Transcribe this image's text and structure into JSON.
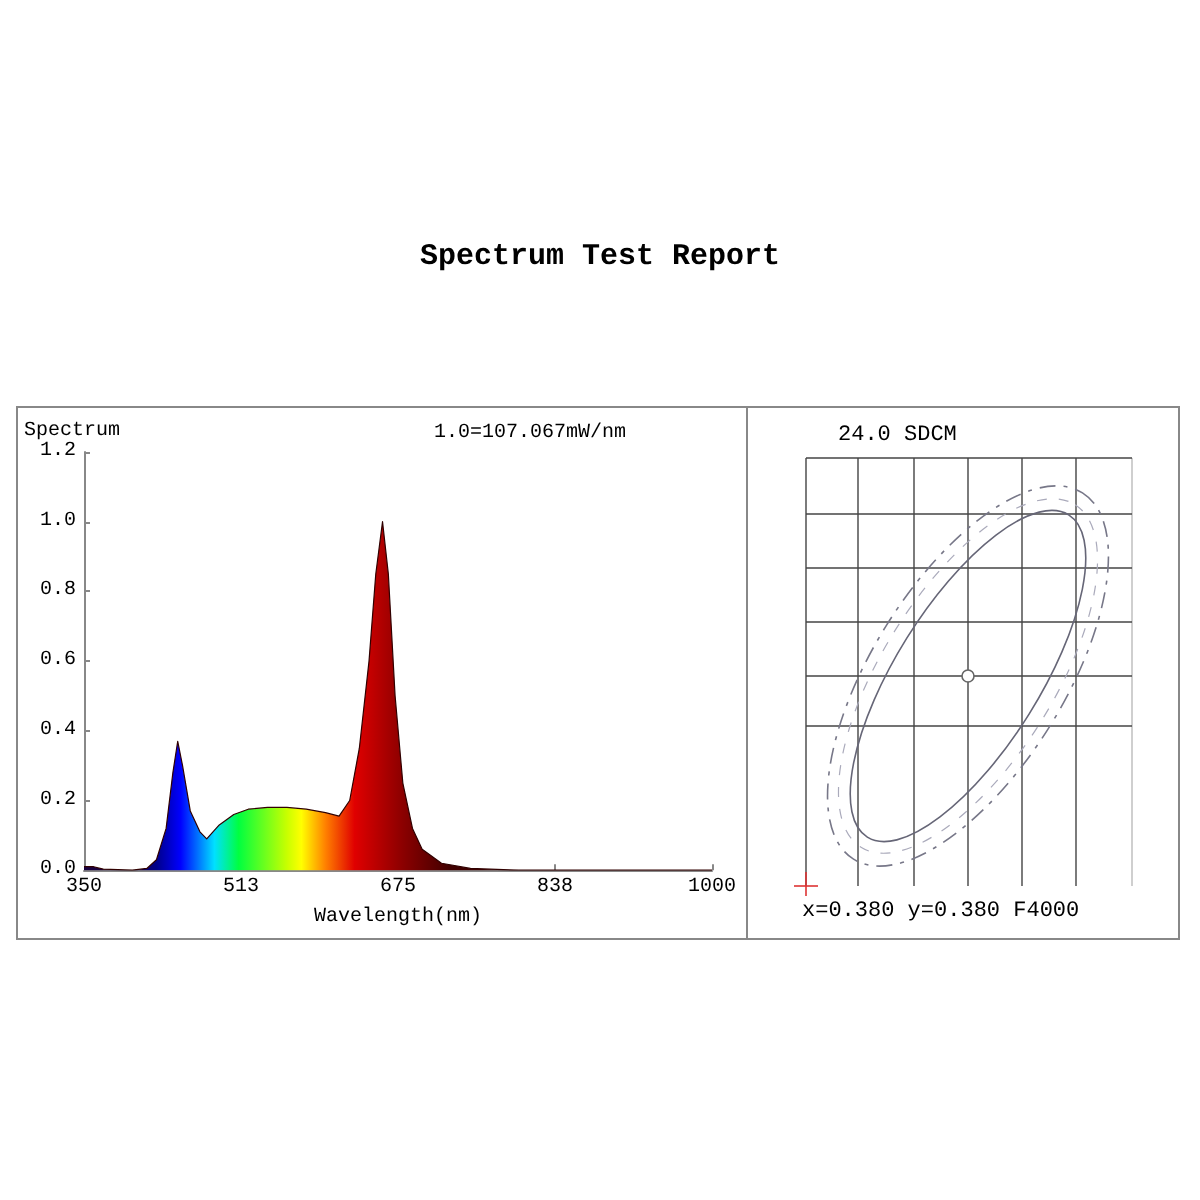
{
  "chart_data": [
    {
      "type": "area",
      "title": "Spectrum Test Report",
      "xlabel": "Wavelength(nm)",
      "ylabel": "Spectrum",
      "annotations": [
        "1.0=107.067mW/nm"
      ],
      "x": [
        350,
        360,
        370,
        400,
        415,
        425,
        435,
        442,
        447,
        452,
        460,
        470,
        477,
        490,
        505,
        520,
        540,
        560,
        580,
        600,
        614,
        625,
        635,
        645,
        652,
        659,
        665,
        672,
        680,
        690,
        700,
        720,
        750,
        800,
        900,
        1000
      ],
      "values": [
        0.01,
        0.01,
        0.003,
        0,
        0.005,
        0.03,
        0.12,
        0.28,
        0.37,
        0.3,
        0.17,
        0.11,
        0.09,
        0.13,
        0.16,
        0.175,
        0.18,
        0.18,
        0.175,
        0.165,
        0.155,
        0.2,
        0.35,
        0.6,
        0.85,
        1.0,
        0.85,
        0.5,
        0.25,
        0.12,
        0.06,
        0.02,
        0.005,
        0,
        0,
        0
      ],
      "xlim": [
        350,
        1000
      ],
      "xticks": [
        350,
        {
          "value": 512.5,
          "label": "513"
        },
        675,
        {
          "value": 837.5,
          "label": "838"
        },
        1000
      ],
      "ylim": [
        0,
        1.2
      ],
      "yticks": [
        {
          "value": 0,
          "label": "0.0"
        },
        0.2,
        0.4,
        0.6,
        0.8,
        {
          "value": 1,
          "label": "1.0"
        },
        1.2
      ],
      "grid": false
    },
    {
      "type": "other",
      "title": "24.0 SDCM",
      "annotations": [
        "x=0.380 y=0.380 F4000"
      ]
    }
  ]
}
